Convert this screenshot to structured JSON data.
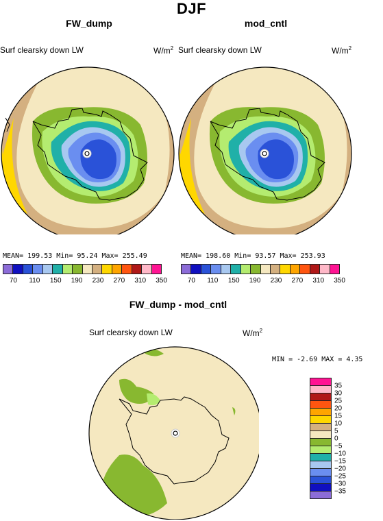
{
  "title": "DJF",
  "colors": [
    "#8c6cd8",
    "#1010c0",
    "#2a52d8",
    "#6a8ef0",
    "#a8c8f0",
    "#20b0a8",
    "#b4ec70",
    "#88b830",
    "#f5e8c0",
    "#d4b080",
    "#ffd700",
    "#ffa500",
    "#ff5510",
    "#b01818",
    "#ffb8c8",
    "#ff1493"
  ],
  "diff_colors": [
    "#8c6cd8",
    "#1010c0",
    "#2a52d8",
    "#6a8ef0",
    "#a8c8f0",
    "#20b0a8",
    "#b4ec70",
    "#88b830",
    "#f5e8c0",
    "#d4b080",
    "#ffd700",
    "#ffa500",
    "#ff5510",
    "#b01818",
    "#ffb8c8",
    "#ff1493"
  ],
  "panels": [
    {
      "title": "FW_dump",
      "variable": "Surf clearsky down LW",
      "units_base": "W/m",
      "units_exp": "2",
      "stats": "MEAN= 199.53   Min=  95.24   Max= 255.49"
    },
    {
      "title": "mod_cntl",
      "variable": "Surf clearsky down LW",
      "units_base": "W/m",
      "units_exp": "2",
      "stats": "MEAN= 198.60   Min=  93.57   Max= 253.93"
    }
  ],
  "colorbar_ticks": [
    "70",
    "110",
    "150",
    "190",
    "230",
    "270",
    "310",
    "350"
  ],
  "difference": {
    "title": "FW_dump - mod_cntl",
    "variable": "Surf clearsky down LW",
    "units_base": "W/m",
    "units_exp": "2",
    "stats": "MIN =   -2.69  MAX =    4.35",
    "colorbar_ticks": [
      "35",
      "30",
      "25",
      "20",
      "15",
      "10",
      "5",
      "0",
      "−5",
      "−10",
      "−15",
      "−20",
      "−25",
      "−30",
      "−35"
    ]
  }
}
